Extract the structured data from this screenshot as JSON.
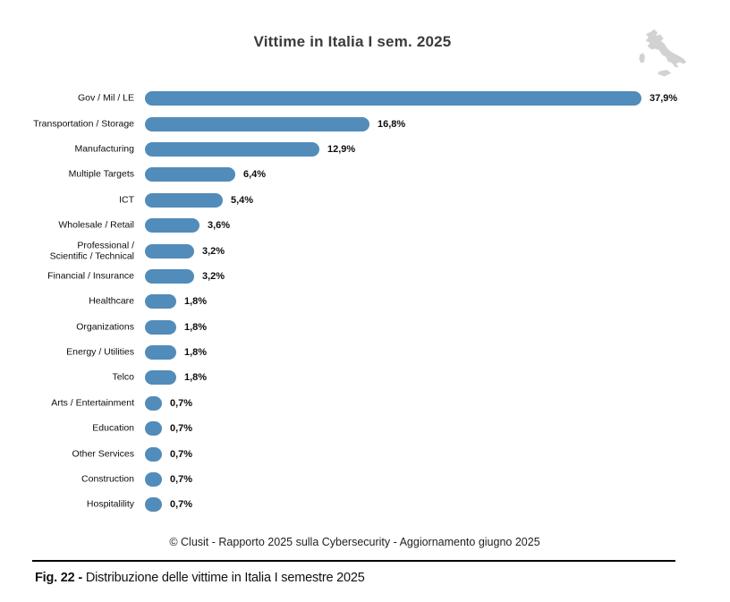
{
  "chart_data": {
    "type": "bar",
    "orientation": "horizontal",
    "title": "Vittime in Italia I sem. 2025",
    "categories": [
      "Gov / Mil / LE",
      "Transportation / Storage",
      "Manufacturing",
      "Multiple Targets",
      "ICT",
      "Wholesale / Retail",
      "Professional / Scientific / Technical",
      "Financial / Insurance",
      "Healthcare",
      "Organizations",
      "Energy / Utilities",
      "Telco",
      "Arts / Entertainment",
      "Education",
      "Other Services",
      "Construction",
      "Hospitalility"
    ],
    "display_labels": [
      "Gov / Mil / LE",
      "Transportation / Storage",
      "Manufacturing",
      "Multiple Targets",
      "ICT",
      "Wholesale / Retail",
      "Professional /\nScientific / Technical",
      "Financial / Insurance",
      "Healthcare",
      "Organizations",
      "Energy / Utilities",
      "Telco",
      "Arts / Entertainment",
      "Education",
      "Other Services",
      "Construction",
      "Hospitalility"
    ],
    "values": [
      37.9,
      16.8,
      12.9,
      6.4,
      5.4,
      3.6,
      3.2,
      3.2,
      1.8,
      1.8,
      1.8,
      1.8,
      0.7,
      0.7,
      0.7,
      0.7,
      0.7
    ],
    "value_labels": [
      "37,9%",
      "16,8%",
      "12,9%",
      "6,4%",
      "5,4%",
      "3,6%",
      "3,2%",
      "3,2%",
      "1,8%",
      "1,8%",
      "1,8%",
      "1,8%",
      "0,7%",
      "0,7%",
      "0,7%",
      "0,7%",
      "0,7%"
    ],
    "bar_color": "#528cba",
    "xlim": [
      0,
      40
    ],
    "grid": false,
    "legend": false
  },
  "footer": "© Clusit - Rapporto 2025 sulla Cybersecurity - Aggiornamento giugno 2025",
  "caption": {
    "fig_label": "Fig. 22 -",
    "text": "Distribuzione delle vittime in Italia I semestre 2025"
  },
  "icons": {
    "italy_map_color": "#d2d2d2"
  }
}
